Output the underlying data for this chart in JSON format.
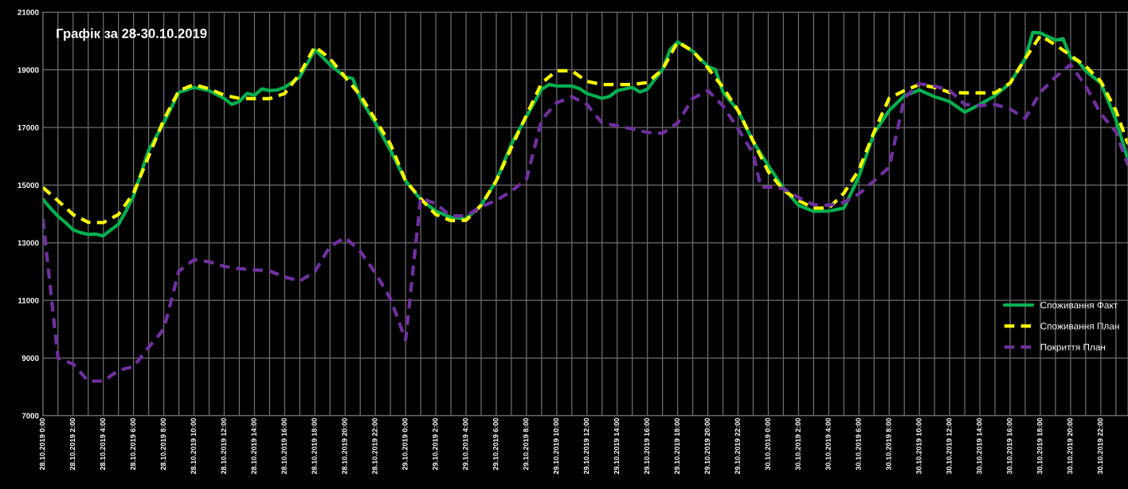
{
  "chart_data": {
    "type": "line",
    "title": "Графік за 28-30.10.2019",
    "xlim": [
      "2019-10-28T00:00",
      "2019-10-30T23:48"
    ],
    "xticks": [
      {
        "value": "2019-10-28T00:00",
        "label": "28.10.2019 0:00"
      },
      {
        "value": "2019-10-28T01:00",
        "label": null
      },
      {
        "value": "2019-10-28T02:00",
        "label": "28.10.2019 2:00"
      },
      {
        "value": "2019-10-28T03:00",
        "label": null
      },
      {
        "value": "2019-10-28T04:00",
        "label": "28.10.2019 4:00"
      },
      {
        "value": "2019-10-28T05:00",
        "label": null
      },
      {
        "value": "2019-10-28T06:00",
        "label": "28.10.2019 6:00"
      },
      {
        "value": "2019-10-28T07:00",
        "label": null
      },
      {
        "value": "2019-10-28T08:00",
        "label": "28.10.2019 8:00"
      },
      {
        "value": "2019-10-28T09:00",
        "label": null
      },
      {
        "value": "2019-10-28T10:00",
        "label": "28.10.2019 10:00"
      },
      {
        "value": "2019-10-28T11:00",
        "label": null
      },
      {
        "value": "2019-10-28T12:00",
        "label": "28.10.2019 12:00"
      },
      {
        "value": "2019-10-28T13:00",
        "label": null
      },
      {
        "value": "2019-10-28T14:00",
        "label": "28.10.2019 14:00"
      },
      {
        "value": "2019-10-28T15:00",
        "label": null
      },
      {
        "value": "2019-10-28T16:00",
        "label": "28.10.2019 16:00"
      },
      {
        "value": "2019-10-28T17:00",
        "label": null
      },
      {
        "value": "2019-10-28T18:00",
        "label": "28.10.2019 18:00"
      },
      {
        "value": "2019-10-28T19:00",
        "label": null
      },
      {
        "value": "2019-10-28T20:00",
        "label": "28.10.2019 20:00"
      },
      {
        "value": "2019-10-28T21:00",
        "label": null
      },
      {
        "value": "2019-10-28T22:00",
        "label": "28.10.2019 22:00"
      },
      {
        "value": "2019-10-28T23:00",
        "label": null
      },
      {
        "value": "2019-10-29T00:00",
        "label": "29.10.2019 0:00"
      },
      {
        "value": "2019-10-29T01:00",
        "label": null
      },
      {
        "value": "2019-10-29T02:00",
        "label": "29.10.2019 2:00"
      },
      {
        "value": "2019-10-29T03:00",
        "label": null
      },
      {
        "value": "2019-10-29T04:00",
        "label": "29.10.2019 4:00"
      },
      {
        "value": "2019-10-29T05:00",
        "label": null
      },
      {
        "value": "2019-10-29T06:00",
        "label": "29.10.2019 6:00"
      },
      {
        "value": "2019-10-29T07:00",
        "label": null
      },
      {
        "value": "2019-10-29T08:00",
        "label": "29.10.2019 8:00"
      },
      {
        "value": "2019-10-29T09:00",
        "label": null
      },
      {
        "value": "2019-10-29T10:00",
        "label": "29.10.2019 10:00"
      },
      {
        "value": "2019-10-29T11:00",
        "label": null
      },
      {
        "value": "2019-10-29T12:00",
        "label": "29.10.2019 12:00"
      },
      {
        "value": "2019-10-29T13:00",
        "label": null
      },
      {
        "value": "2019-10-29T14:00",
        "label": "29.10.2019 14:00"
      },
      {
        "value": "2019-10-29T15:00",
        "label": null
      },
      {
        "value": "2019-10-29T16:00",
        "label": "29.10.2019 16:00"
      },
      {
        "value": "2019-10-29T17:00",
        "label": null
      },
      {
        "value": "2019-10-29T18:00",
        "label": "29.10.2019 18:00"
      },
      {
        "value": "2019-10-29T19:00",
        "label": null
      },
      {
        "value": "2019-10-29T20:00",
        "label": "29.10.2019 20:00"
      },
      {
        "value": "2019-10-29T21:00",
        "label": null
      },
      {
        "value": "2019-10-29T22:00",
        "label": "29.10.2019 22:00"
      },
      {
        "value": "2019-10-29T23:00",
        "label": null
      },
      {
        "value": "2019-10-30T00:00",
        "label": "30.10.2019 0:00"
      },
      {
        "value": "2019-10-30T01:00",
        "label": null
      },
      {
        "value": "2019-10-30T02:00",
        "label": "30.10.2019 2:00"
      },
      {
        "value": "2019-10-30T03:00",
        "label": null
      },
      {
        "value": "2019-10-30T04:00",
        "label": "30.10.2019 4:00"
      },
      {
        "value": "2019-10-30T05:00",
        "label": null
      },
      {
        "value": "2019-10-30T06:00",
        "label": "30.10.2019 6:00"
      },
      {
        "value": "2019-10-30T07:00",
        "label": null
      },
      {
        "value": "2019-10-30T08:00",
        "label": "30.10.2019 8:00"
      },
      {
        "value": "2019-10-30T09:00",
        "label": null
      },
      {
        "value": "2019-10-30T10:00",
        "label": "30.10.2019 10:00"
      },
      {
        "value": "2019-10-30T11:00",
        "label": null
      },
      {
        "value": "2019-10-30T12:00",
        "label": "30.10.2019 12:00"
      },
      {
        "value": "2019-10-30T13:00",
        "label": null
      },
      {
        "value": "2019-10-30T14:00",
        "label": "30.10.2019 14:00"
      },
      {
        "value": "2019-10-30T15:00",
        "label": null
      },
      {
        "value": "2019-10-30T16:00",
        "label": "30.10.2019 16:00"
      },
      {
        "value": "2019-10-30T17:00",
        "label": null
      },
      {
        "value": "2019-10-30T18:00",
        "label": "30.10.2019 18:00"
      },
      {
        "value": "2019-10-30T19:00",
        "label": null
      },
      {
        "value": "2019-10-30T20:00",
        "label": "30.10.2019 20:00"
      },
      {
        "value": "2019-10-30T21:00",
        "label": null
      },
      {
        "value": "2019-10-30T22:00",
        "label": "30.10.2019 22:00"
      },
      {
        "value": "2019-10-30T23:00",
        "label": null
      }
    ],
    "ylim": [
      7000,
      21000
    ],
    "yticks": [
      7000,
      9000,
      11000,
      13000,
      15000,
      17000,
      19000,
      21000
    ],
    "grid": true,
    "legend": "right",
    "series": [
      {
        "name": "Споживання Факт",
        "color": "#00b050",
        "line_style": "solid",
        "x": [
          "2019-10-28T00:00",
          "2019-10-28T00:30",
          "2019-10-28T01:00",
          "2019-10-28T01:30",
          "2019-10-28T02:00",
          "2019-10-28T02:30",
          "2019-10-28T03:00",
          "2019-10-28T03:30",
          "2019-10-28T04:00",
          "2019-10-28T04:30",
          "2019-10-28T05:00",
          "2019-10-28T05:30",
          "2019-10-28T06:00",
          "2019-10-28T07:00",
          "2019-10-28T08:00",
          "2019-10-28T09:00",
          "2019-10-28T10:00",
          "2019-10-28T11:00",
          "2019-10-28T12:00",
          "2019-10-28T12:30",
          "2019-10-28T13:00",
          "2019-10-28T13:30",
          "2019-10-28T14:00",
          "2019-10-28T14:30",
          "2019-10-28T15:00",
          "2019-10-28T15:30",
          "2019-10-28T16:00",
          "2019-10-28T17:00",
          "2019-10-28T18:00",
          "2019-10-28T19:00",
          "2019-10-28T20:00",
          "2019-10-28T20:30",
          "2019-10-28T21:00",
          "2019-10-28T22:00",
          "2019-10-28T23:00",
          "2019-10-29T00:00",
          "2019-10-29T01:00",
          "2019-10-29T02:00",
          "2019-10-29T03:00",
          "2019-10-29T04:00",
          "2019-10-29T05:00",
          "2019-10-29T06:00",
          "2019-10-29T07:00",
          "2019-10-29T08:00",
          "2019-10-29T09:00",
          "2019-10-29T09:30",
          "2019-10-29T10:00",
          "2019-10-29T11:00",
          "2019-10-29T11:30",
          "2019-10-29T12:00",
          "2019-10-29T13:00",
          "2019-10-29T13:30",
          "2019-10-29T14:00",
          "2019-10-29T15:00",
          "2019-10-29T15:30",
          "2019-10-29T16:00",
          "2019-10-29T17:00",
          "2019-10-29T17:30",
          "2019-10-29T18:00",
          "2019-10-29T19:00",
          "2019-10-29T20:00",
          "2019-10-29T20:30",
          "2019-10-29T21:00",
          "2019-10-29T22:00",
          "2019-10-29T23:00",
          "2019-10-30T00:00",
          "2019-10-30T01:00",
          "2019-10-30T02:00",
          "2019-10-30T03:00",
          "2019-10-30T04:00",
          "2019-10-30T05:00",
          "2019-10-30T06:00",
          "2019-10-30T07:00",
          "2019-10-30T08:00",
          "2019-10-30T09:00",
          "2019-10-30T10:00",
          "2019-10-30T11:00",
          "2019-10-30T12:00",
          "2019-10-30T13:00",
          "2019-10-30T14:00",
          "2019-10-30T15:00",
          "2019-10-30T16:00",
          "2019-10-30T17:00",
          "2019-10-30T17:30",
          "2019-10-30T18:00",
          "2019-10-30T19:00",
          "2019-10-30T19:30",
          "2019-10-30T20:00",
          "2019-10-30T20:30",
          "2019-10-30T21:00",
          "2019-10-30T22:00",
          "2019-10-30T23:00",
          "2019-10-30T23:48"
        ],
        "values": [
          14510,
          14200,
          13920,
          13700,
          13450,
          13350,
          13290,
          13300,
          13240,
          13450,
          13640,
          14100,
          14620,
          16210,
          17160,
          18220,
          18390,
          18280,
          18010,
          17800,
          17900,
          18180,
          18120,
          18340,
          18280,
          18300,
          18390,
          18750,
          19700,
          19180,
          18750,
          18700,
          18010,
          17160,
          16210,
          15150,
          14500,
          14100,
          13880,
          13830,
          14300,
          15150,
          16420,
          17380,
          18330,
          18490,
          18440,
          18440,
          18350,
          18180,
          18010,
          18080,
          18280,
          18390,
          18230,
          18330,
          19010,
          19700,
          19970,
          19650,
          19120,
          19010,
          18230,
          17590,
          16500,
          15680,
          14900,
          14300,
          14090,
          14100,
          14200,
          15300,
          16800,
          17590,
          18100,
          18300,
          18070,
          17900,
          17530,
          17800,
          18100,
          18540,
          19390,
          20300,
          20280,
          20030,
          20080,
          19430,
          19300,
          18970,
          18540,
          17270,
          15870
        ]
      },
      {
        "name": "Споживання План",
        "color": "#ffff00",
        "line_style": "dashed",
        "x": [
          "2019-10-28T00:00",
          "2019-10-28T01:00",
          "2019-10-28T02:00",
          "2019-10-28T03:00",
          "2019-10-28T04:00",
          "2019-10-28T05:00",
          "2019-10-28T06:00",
          "2019-10-28T07:00",
          "2019-10-28T08:00",
          "2019-10-28T09:00",
          "2019-10-28T10:00",
          "2019-10-28T11:00",
          "2019-10-28T12:00",
          "2019-10-28T13:00",
          "2019-10-28T14:00",
          "2019-10-28T15:00",
          "2019-10-28T16:00",
          "2019-10-28T17:00",
          "2019-10-28T18:00",
          "2019-10-28T19:00",
          "2019-10-28T20:00",
          "2019-10-28T21:00",
          "2019-10-28T22:00",
          "2019-10-28T23:00",
          "2019-10-29T00:00",
          "2019-10-29T01:00",
          "2019-10-29T02:00",
          "2019-10-29T03:00",
          "2019-10-29T04:00",
          "2019-10-29T05:00",
          "2019-10-29T06:00",
          "2019-10-29T07:00",
          "2019-10-29T08:00",
          "2019-10-29T09:00",
          "2019-10-29T10:00",
          "2019-10-29T11:00",
          "2019-10-29T12:00",
          "2019-10-29T13:00",
          "2019-10-29T14:00",
          "2019-10-29T15:00",
          "2019-10-29T16:00",
          "2019-10-29T17:00",
          "2019-10-29T18:00",
          "2019-10-29T19:00",
          "2019-10-29T20:00",
          "2019-10-29T21:00",
          "2019-10-29T22:00",
          "2019-10-29T23:00",
          "2019-10-30T00:00",
          "2019-10-30T01:00",
          "2019-10-30T02:00",
          "2019-10-30T03:00",
          "2019-10-30T04:00",
          "2019-10-30T05:00",
          "2019-10-30T06:00",
          "2019-10-30T07:00",
          "2019-10-30T08:00",
          "2019-10-30T09:00",
          "2019-10-30T10:00",
          "2019-10-30T11:00",
          "2019-10-30T12:00",
          "2019-10-30T13:00",
          "2019-10-30T14:00",
          "2019-10-30T15:00",
          "2019-10-30T16:00",
          "2019-10-30T17:00",
          "2019-10-30T18:00",
          "2019-10-30T19:00",
          "2019-10-30T20:00",
          "2019-10-30T21:00",
          "2019-10-30T22:00",
          "2019-10-30T23:00",
          "2019-10-30T23:48"
        ],
        "values": [
          14920,
          14460,
          13980,
          13710,
          13700,
          13980,
          14720,
          16000,
          17270,
          18280,
          18490,
          18340,
          18120,
          18010,
          18000,
          18000,
          18180,
          18860,
          19810,
          19390,
          18750,
          18120,
          17270,
          16420,
          15150,
          14530,
          13980,
          13770,
          13780,
          14300,
          15150,
          16310,
          17430,
          18540,
          18970,
          18970,
          18600,
          18490,
          18490,
          18490,
          18560,
          19010,
          19970,
          19650,
          19070,
          18390,
          17590,
          16530,
          15470,
          14830,
          14470,
          14200,
          14200,
          14720,
          15530,
          16850,
          18020,
          18280,
          18490,
          18390,
          18220,
          18200,
          18200,
          18200,
          18540,
          19390,
          20190,
          19870,
          19500,
          19130,
          18600,
          17590,
          16420
        ]
      },
      {
        "name": "Покриття План",
        "color": "#7030a0",
        "line_style": "dashed",
        "x": [
          "2019-10-28T00:00",
          "2019-10-28T01:00",
          "2019-10-28T02:00",
          "2019-10-28T03:00",
          "2019-10-28T04:00",
          "2019-10-28T05:00",
          "2019-10-28T06:00",
          "2019-10-28T07:00",
          "2019-10-28T08:00",
          "2019-10-28T09:00",
          "2019-10-28T10:00",
          "2019-10-28T11:00",
          "2019-10-28T12:00",
          "2019-10-28T13:00",
          "2019-10-28T14:00",
          "2019-10-28T15:00",
          "2019-10-28T16:00",
          "2019-10-28T17:00",
          "2019-10-28T18:00",
          "2019-10-28T19:00",
          "2019-10-28T20:00",
          "2019-10-28T21:00",
          "2019-10-28T22:00",
          "2019-10-28T23:00",
          "2019-10-29T00:00",
          "2019-10-29T01:00",
          "2019-10-29T02:00",
          "2019-10-29T03:00",
          "2019-10-29T04:00",
          "2019-10-29T05:00",
          "2019-10-29T06:00",
          "2019-10-29T07:00",
          "2019-10-29T08:00",
          "2019-10-29T09:00",
          "2019-10-29T10:00",
          "2019-10-29T11:00",
          "2019-10-29T12:00",
          "2019-10-29T13:00",
          "2019-10-29T14:00",
          "2019-10-29T15:00",
          "2019-10-29T16:00",
          "2019-10-29T17:00",
          "2019-10-29T18:00",
          "2019-10-29T19:00",
          "2019-10-29T20:00",
          "2019-10-29T21:00",
          "2019-10-29T22:00",
          "2019-10-29T23:00",
          "2019-10-29T23:30",
          "2019-10-30T00:00",
          "2019-10-30T01:00",
          "2019-10-30T02:00",
          "2019-10-30T03:00",
          "2019-10-30T04:00",
          "2019-10-30T05:00",
          "2019-10-30T06:00",
          "2019-10-30T07:00",
          "2019-10-30T08:00",
          "2019-10-30T09:00",
          "2019-10-30T10:00",
          "2019-10-30T11:00",
          "2019-10-30T12:00",
          "2019-10-30T13:00",
          "2019-10-30T14:00",
          "2019-10-30T15:00",
          "2019-10-30T16:00",
          "2019-10-30T17:00",
          "2019-10-30T18:00",
          "2019-10-30T19:00",
          "2019-10-30T20:00",
          "2019-10-30T21:00",
          "2019-10-30T22:00",
          "2019-10-30T23:00",
          "2019-10-30T23:48"
        ],
        "values": [
          13820,
          9000,
          8790,
          8200,
          8200,
          8570,
          8700,
          9370,
          10000,
          12020,
          12410,
          12340,
          12180,
          12100,
          12060,
          12020,
          11810,
          11670,
          12000,
          12870,
          13180,
          12700,
          11950,
          11060,
          9630,
          14560,
          14350,
          13930,
          13930,
          14250,
          14470,
          14790,
          15200,
          17270,
          17860,
          18070,
          17800,
          17160,
          17060,
          16950,
          16830,
          16800,
          17160,
          18010,
          18280,
          17750,
          16950,
          16100,
          14930,
          14930,
          14880,
          14570,
          14320,
          14300,
          14400,
          14700,
          15150,
          15620,
          18020,
          18520,
          18440,
          18280,
          17800,
          17760,
          17800,
          17640,
          17320,
          18220,
          18750,
          19180,
          18440,
          17480,
          16850,
          15680
        ]
      }
    ]
  }
}
